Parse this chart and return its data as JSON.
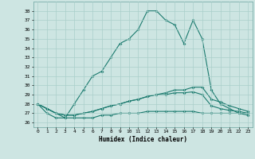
{
  "title": "",
  "xlabel": "Humidex (Indice chaleur)",
  "ylabel": "",
  "bg_color": "#cde5e2",
  "grid_color": "#aacfcb",
  "line_color": "#1a7a6e",
  "xlim": [
    -0.5,
    23.5
  ],
  "ylim": [
    25.5,
    39.0
  ],
  "yticks": [
    26,
    27,
    28,
    29,
    30,
    31,
    32,
    33,
    34,
    35,
    36,
    37,
    38
  ],
  "xticks": [
    0,
    1,
    2,
    3,
    4,
    5,
    6,
    7,
    8,
    9,
    10,
    11,
    12,
    13,
    14,
    15,
    16,
    17,
    18,
    19,
    20,
    21,
    22,
    23
  ],
  "xtick_labels": [
    "0",
    "1",
    "2",
    "3",
    "4",
    "5",
    "6",
    "7",
    "8",
    "9",
    "10",
    "11",
    "12",
    "13",
    "14",
    "15",
    "16",
    "17",
    "18",
    "19",
    "20",
    "21",
    "22",
    "23"
  ],
  "series": [
    [
      28.0,
      27.0,
      26.5,
      26.5,
      28.0,
      29.5,
      31.0,
      31.5,
      33.0,
      34.5,
      35.0,
      36.0,
      38.0,
      38.0,
      37.0,
      36.5,
      34.5,
      37.0,
      35.0,
      29.5,
      28.0,
      27.5,
      27.0,
      27.0
    ],
    [
      28.0,
      27.5,
      27.0,
      26.8,
      26.8,
      27.0,
      27.2,
      27.5,
      27.8,
      28.0,
      28.3,
      28.5,
      28.8,
      29.0,
      29.2,
      29.5,
      29.5,
      29.8,
      29.8,
      28.5,
      28.2,
      27.8,
      27.5,
      27.2
    ],
    [
      28.0,
      27.5,
      27.0,
      26.8,
      26.8,
      27.0,
      27.2,
      27.5,
      27.8,
      28.0,
      28.3,
      28.5,
      28.8,
      29.0,
      29.0,
      29.2,
      29.2,
      29.3,
      29.0,
      27.8,
      27.5,
      27.3,
      27.2,
      27.0
    ],
    [
      28.0,
      27.5,
      27.0,
      26.5,
      26.5,
      26.5,
      26.5,
      26.8,
      26.8,
      27.0,
      27.0,
      27.0,
      27.2,
      27.2,
      27.2,
      27.2,
      27.2,
      27.2,
      27.0,
      27.0,
      27.0,
      27.0,
      27.0,
      26.8
    ]
  ]
}
